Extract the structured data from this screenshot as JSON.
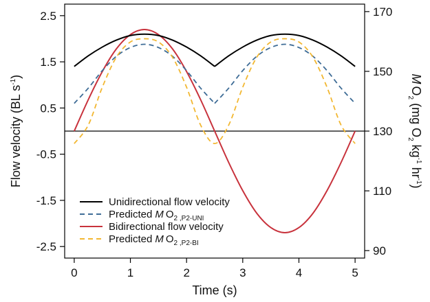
{
  "chart_data": {
    "type": "line",
    "x_axis": {
      "label": "Time (s)",
      "range": [
        -0.17,
        5.17
      ],
      "ticks": [
        "0",
        "1",
        "2",
        "3",
        "4",
        "5"
      ]
    },
    "y_left": {
      "label": "Flow velocity (BL s",
      "label_sup": "-1",
      "label_end": ")",
      "range": [
        -2.75,
        2.75
      ],
      "ticks": [
        "-2.5",
        "-1.5",
        "-0.5",
        "0.5",
        "1.5",
        "2.5"
      ]
    },
    "y_right": {
      "label_parts": {
        "m": "M",
        "o2": "O",
        "o2_sub": "2",
        "open": " (mg O",
        "open_sub": "2",
        "kg": " kg",
        "kg_sup": "-1",
        "hr": " hr",
        "hr_sup": "-1",
        "close": ")"
      },
      "range": [
        87.5,
        172.5
      ],
      "ticks": [
        "90",
        "110",
        "130",
        "150",
        "170"
      ]
    },
    "reference_line": {
      "y_left": 0,
      "color": "#000000"
    },
    "series": [
      {
        "name": "Unidirectional flow velocity",
        "color": "#000000",
        "style": "solid",
        "axis": "left",
        "x": [
          0.0,
          0.25,
          0.5,
          0.75,
          1.0,
          1.25,
          1.5,
          1.75,
          2.0,
          2.25,
          2.5,
          2.75,
          3.0,
          3.25,
          3.5,
          3.75,
          4.0,
          4.25,
          4.5,
          4.75,
          5.0
        ],
        "values": [
          1.4,
          1.63,
          1.82,
          1.97,
          2.07,
          2.1,
          2.07,
          1.97,
          1.82,
          1.63,
          1.4,
          1.63,
          1.82,
          1.97,
          2.07,
          2.1,
          2.07,
          1.97,
          1.82,
          1.63,
          1.4
        ]
      },
      {
        "name": "Predicted",
        "name_italic": "M",
        "name_tail": "O",
        "name_sub": "2 ,P2-UNI",
        "color": "#3e6c96",
        "style": "dashed",
        "axis": "left",
        "x": [
          0.0,
          0.25,
          0.5,
          0.75,
          1.0,
          1.25,
          1.5,
          1.75,
          2.0,
          2.25,
          2.5,
          2.75,
          3.0,
          3.25,
          3.5,
          3.75,
          4.0,
          4.25,
          4.5,
          4.75,
          5.0
        ],
        "values": [
          0.6,
          0.93,
          1.31,
          1.62,
          1.81,
          1.88,
          1.81,
          1.62,
          1.31,
          0.93,
          0.6,
          0.93,
          1.31,
          1.62,
          1.81,
          1.88,
          1.81,
          1.62,
          1.31,
          0.93,
          0.6
        ]
      },
      {
        "name": "Bidirectional flow velocity",
        "color": "#c8323c",
        "style": "solid",
        "axis": "left",
        "x": [
          0.0,
          0.25,
          0.5,
          0.75,
          1.0,
          1.25,
          1.5,
          1.75,
          2.0,
          2.25,
          2.5,
          2.75,
          3.0,
          3.25,
          3.5,
          3.75,
          4.0,
          4.25,
          4.5,
          4.75,
          5.0
        ],
        "values": [
          0.0,
          0.68,
          1.29,
          1.78,
          2.09,
          2.2,
          2.09,
          1.78,
          1.29,
          0.68,
          0.0,
          -0.68,
          -1.29,
          -1.78,
          -2.09,
          -2.2,
          -2.09,
          -1.78,
          -1.29,
          -0.68,
          0.0
        ]
      },
      {
        "name": "Predicted",
        "name_italic": "M",
        "name_tail": "O",
        "name_sub": "2 ,P2-BI",
        "color": "#f2b731",
        "style": "dashed",
        "axis": "left",
        "x": [
          0.0,
          0.25,
          0.5,
          0.75,
          1.0,
          1.25,
          1.5,
          1.75,
          2.0,
          2.25,
          2.5,
          2.75,
          3.0,
          3.25,
          3.5,
          3.75,
          4.0,
          4.25,
          4.5,
          4.75,
          5.0
        ],
        "values": [
          -0.27,
          0.13,
          0.95,
          1.6,
          1.93,
          2.0,
          1.93,
          1.6,
          0.95,
          0.13,
          -0.27,
          0.13,
          0.95,
          1.6,
          1.93,
          2.0,
          1.93,
          1.6,
          0.95,
          0.13,
          -0.27
        ]
      }
    ],
    "legend": {
      "position": "bottom-left"
    },
    "grid": false
  }
}
